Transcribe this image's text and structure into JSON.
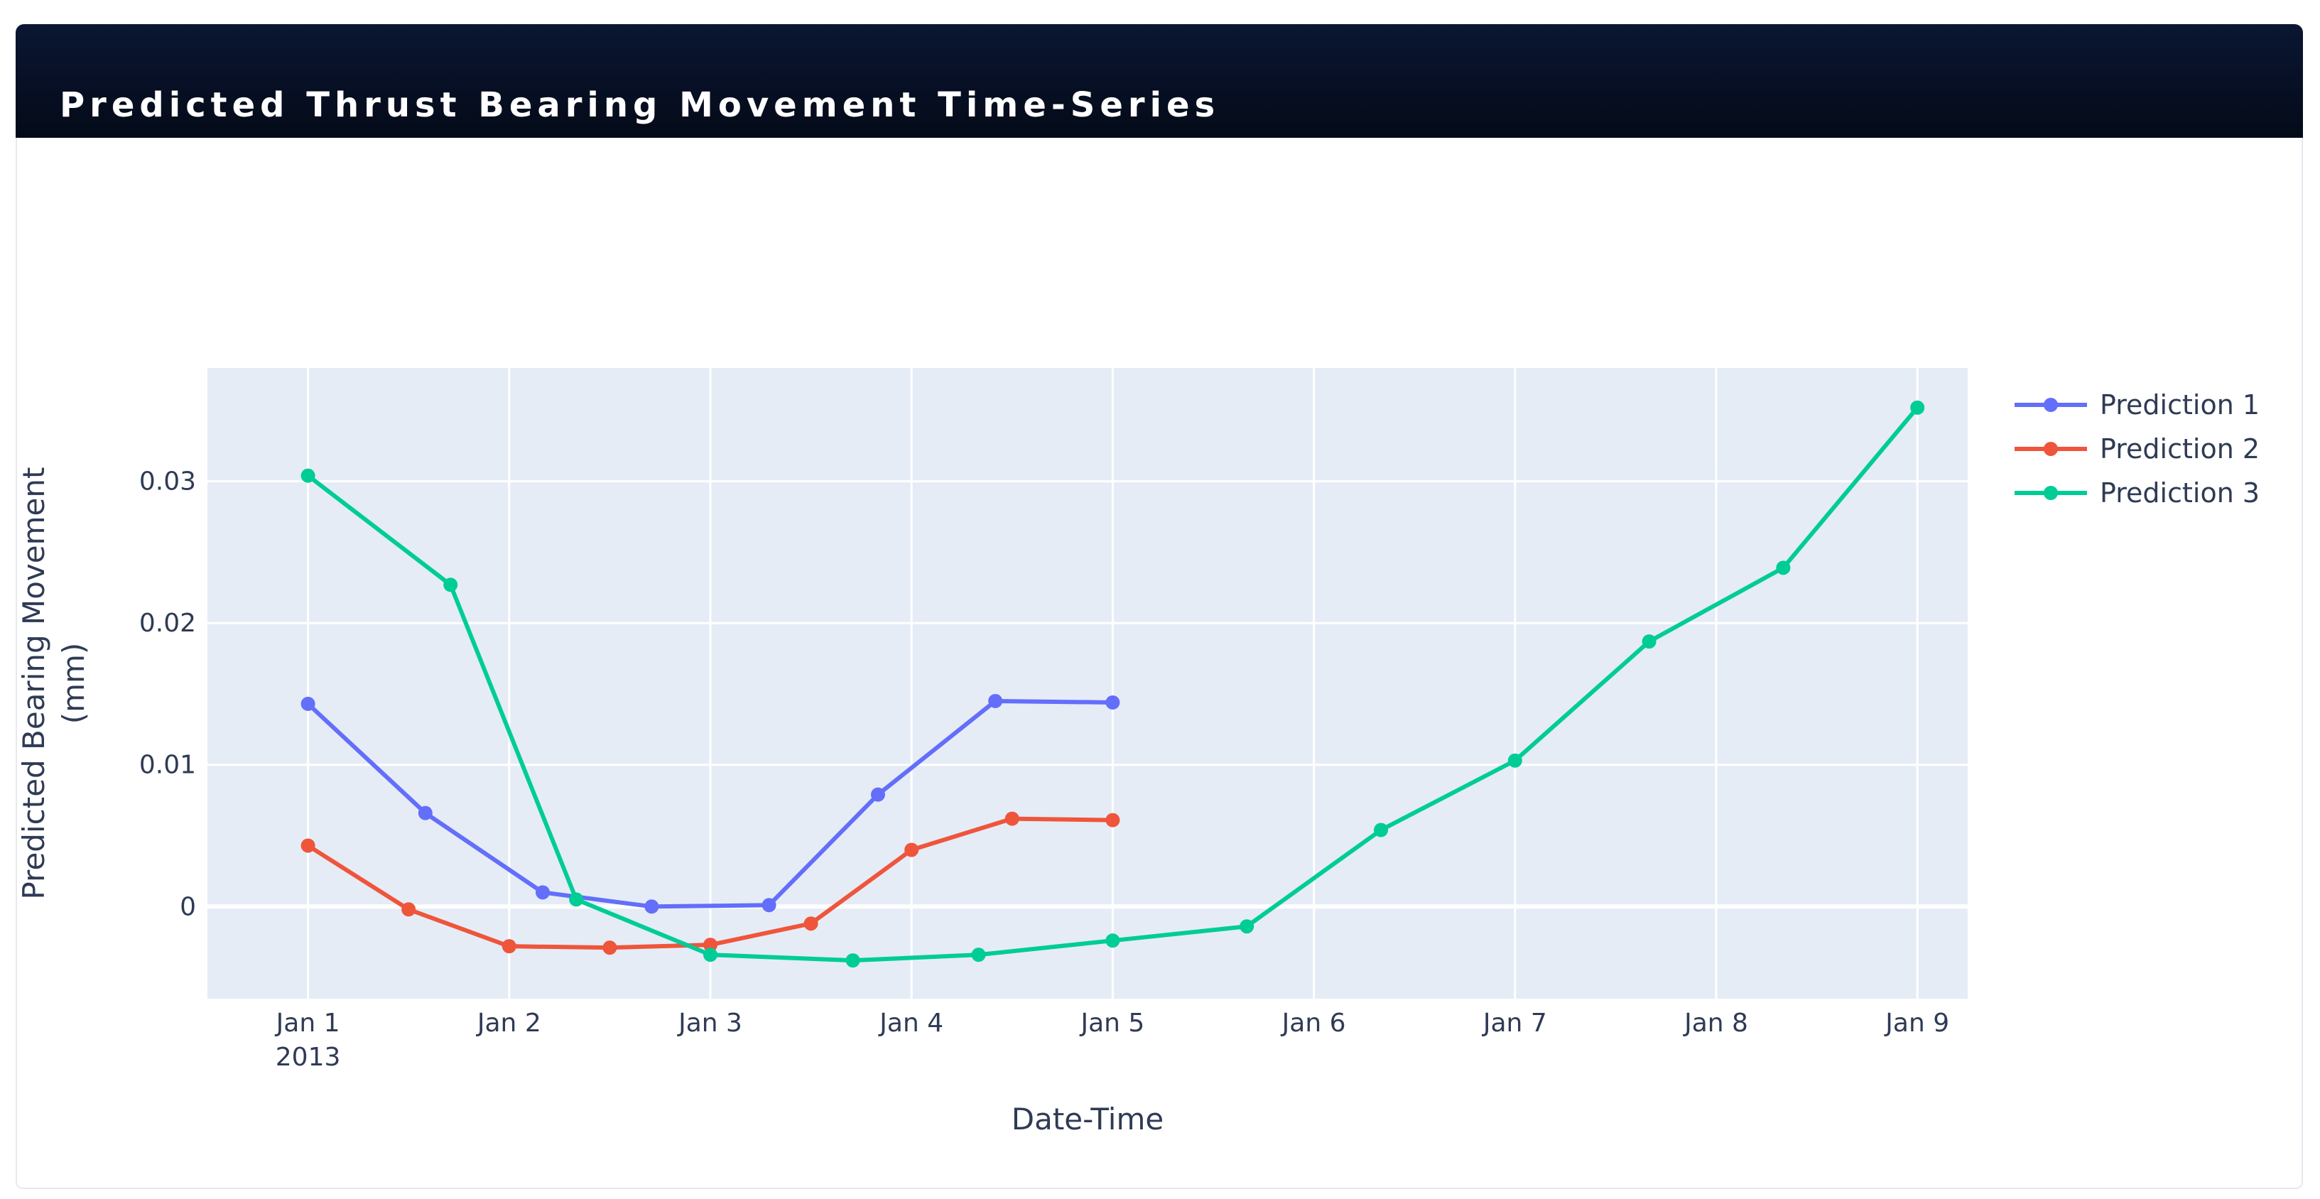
{
  "panel": {
    "title": "Predicted Thrust Bearing Movement Time-Series"
  },
  "chart_data": {
    "type": "line",
    "xlabel": "Date-Time",
    "ylabel_lines": [
      "Predicted Bearing Movement",
      "(mm)"
    ],
    "x_tick_labels": [
      "Jan 1",
      "Jan 2",
      "Jan 3",
      "Jan 4",
      "Jan 5",
      "Jan 6",
      "Jan 7",
      "Jan 8",
      "Jan 9"
    ],
    "x_year_label": "2013",
    "y_tick_labels": [
      "0",
      "0.01",
      "0.02",
      "0.03"
    ],
    "y_ticks": [
      0,
      0.01,
      0.02,
      0.03
    ],
    "xlim": [
      "2012-12-31 12:00",
      "2013-01-09 06:00"
    ],
    "ylim": [
      -0.0065,
      0.038
    ],
    "grid": true,
    "legend_position": "top-right",
    "series": [
      {
        "name": "Prediction 1",
        "color": "#636efa",
        "x": [
          "2013-01-01 00:00",
          "2013-01-01 14:00",
          "2013-01-02 04:00",
          "2013-01-02 17:00",
          "2013-01-03 07:00",
          "2013-01-03 20:00",
          "2013-01-04 10:00",
          "2013-01-05 00:00"
        ],
        "y": [
          0.0143,
          0.0066,
          0.001,
          0.0,
          0.0001,
          0.0079,
          0.0145,
          0.0144
        ]
      },
      {
        "name": "Prediction 2",
        "color": "#ef553b",
        "x": [
          "2013-01-01 00:00",
          "2013-01-01 12:00",
          "2013-01-02 00:00",
          "2013-01-02 12:00",
          "2013-01-03 00:00",
          "2013-01-03 12:00",
          "2013-01-04 00:00",
          "2013-01-04 12:00",
          "2013-01-05 00:00"
        ],
        "y": [
          0.0043,
          -0.0002,
          -0.0028,
          -0.0029,
          -0.0027,
          -0.0012,
          0.004,
          0.0062,
          0.0061
        ]
      },
      {
        "name": "Prediction 3",
        "color": "#00cc96",
        "x": [
          "2013-01-01 00:00",
          "2013-01-01 17:00",
          "2013-01-02 08:00",
          "2013-01-03 00:00",
          "2013-01-03 17:00",
          "2013-01-04 08:00",
          "2013-01-05 00:00",
          "2013-01-05 16:00",
          "2013-01-06 08:00",
          "2013-01-07 00:00",
          "2013-01-07 16:00",
          "2013-01-08 08:00",
          "2013-01-09 00:00"
        ],
        "y": [
          0.0304,
          0.0227,
          0.0005,
          -0.0034,
          -0.0038,
          -0.0034,
          -0.0024,
          -0.0014,
          0.0054,
          0.0103,
          0.0187,
          0.0239,
          0.0352
        ]
      }
    ]
  }
}
